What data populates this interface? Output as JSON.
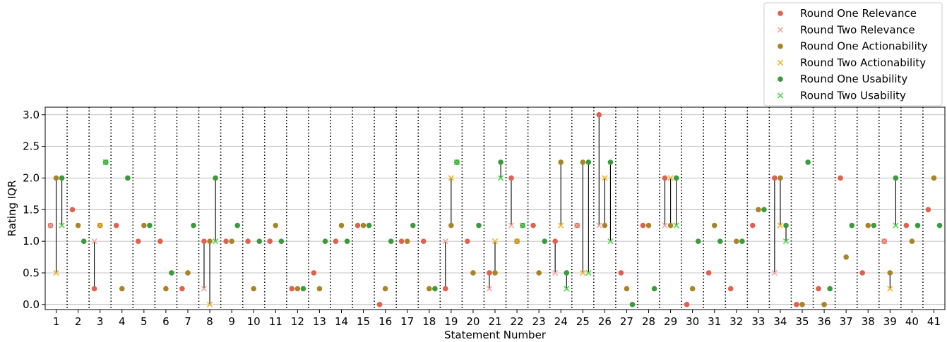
{
  "chart_data": {
    "type": "scatter",
    "title": "",
    "xlabel": "Statement Number",
    "ylabel": "Rating IQR",
    "ylim": [
      -0.08,
      3.12
    ],
    "yticks": [
      0.0,
      0.5,
      1.0,
      1.5,
      2.0,
      2.5,
      3.0
    ],
    "ytick_labels": [
      "0.0",
      "0.5",
      "1.0",
      "1.5",
      "2.0",
      "2.5",
      "3.0"
    ],
    "categories": [
      "1",
      "2",
      "3",
      "4",
      "5",
      "6",
      "7",
      "8",
      "9",
      "10",
      "11",
      "12",
      "13",
      "14",
      "15",
      "16",
      "17",
      "18",
      "19",
      "20",
      "21",
      "22",
      "23",
      "24",
      "25",
      "26",
      "27",
      "28",
      "29",
      "30",
      "31",
      "32",
      "33",
      "34",
      "35",
      "36",
      "37",
      "38",
      "39",
      "40",
      "41"
    ],
    "grid": "horizontal",
    "legend_position": "top-right",
    "series": [
      {
        "name": "Round One Relevance",
        "marker": "circle",
        "color": "#e0614f",
        "offset": -0.26,
        "values": [
          1.25,
          1.5,
          0.25,
          1.25,
          1.0,
          1.0,
          0.25,
          1.0,
          1.0,
          1.0,
          1.0,
          0.25,
          0.5,
          1.0,
          1.25,
          0.0,
          1.0,
          1.0,
          0.25,
          1.0,
          0.5,
          2.0,
          1.25,
          1.0,
          1.25,
          3.0,
          0.5,
          1.25,
          2.0,
          0.0,
          0.5,
          0.25,
          1.25,
          2.0,
          0.0,
          0.25,
          2.0,
          0.5,
          1.0,
          1.25,
          1.5
        ]
      },
      {
        "name": "Round Two Relevance",
        "marker": "x",
        "color": "#f5a9a0",
        "offset": -0.26,
        "values": [
          1.25,
          null,
          1.0,
          null,
          null,
          null,
          null,
          0.25,
          null,
          null,
          null,
          null,
          null,
          null,
          null,
          null,
          null,
          null,
          1.0,
          null,
          0.25,
          1.25,
          null,
          0.5,
          1.25,
          1.25,
          null,
          null,
          1.25,
          null,
          null,
          null,
          null,
          0.5,
          null,
          null,
          null,
          null,
          1.0,
          null,
          null
        ]
      },
      {
        "name": "Round One Actionability",
        "marker": "circle",
        "color": "#a88428",
        "offset": 0.0,
        "values": [
          2.0,
          1.25,
          1.25,
          0.25,
          1.25,
          0.25,
          0.5,
          1.0,
          1.0,
          0.25,
          1.25,
          0.25,
          0.25,
          1.25,
          1.25,
          0.25,
          1.0,
          0.25,
          1.25,
          0.5,
          0.5,
          1.0,
          0.5,
          2.25,
          2.25,
          1.25,
          0.25,
          1.25,
          1.25,
          0.25,
          1.25,
          1.0,
          1.5,
          2.0,
          0.0,
          0.0,
          0.75,
          1.25,
          0.5,
          1.0,
          2.0
        ]
      },
      {
        "name": "Round Two Actionability",
        "marker": "x",
        "color": "#f0b62a",
        "offset": 0.0,
        "values": [
          0.5,
          null,
          1.25,
          null,
          null,
          null,
          null,
          0.0,
          null,
          null,
          null,
          null,
          null,
          null,
          null,
          null,
          null,
          null,
          2.0,
          null,
          1.0,
          1.0,
          null,
          1.25,
          0.5,
          2.0,
          null,
          null,
          2.0,
          null,
          null,
          null,
          null,
          1.25,
          null,
          null,
          null,
          null,
          0.25,
          null,
          null
        ]
      },
      {
        "name": "Round One Usability",
        "marker": "circle",
        "color": "#3a9a3c",
        "offset": 0.26,
        "values": [
          2.0,
          1.0,
          2.25,
          2.0,
          1.25,
          0.5,
          1.25,
          2.0,
          1.25,
          1.0,
          1.0,
          0.25,
          1.0,
          1.0,
          1.25,
          1.0,
          1.25,
          0.25,
          2.25,
          1.25,
          2.25,
          1.25,
          1.0,
          0.5,
          2.25,
          2.25,
          0.0,
          0.25,
          2.0,
          1.0,
          1.0,
          1.0,
          1.5,
          1.25,
          2.25,
          0.25,
          1.25,
          1.25,
          2.0,
          1.25,
          1.25
        ]
      },
      {
        "name": "Round Two Usability",
        "marker": "x",
        "color": "#4fd64b",
        "offset": 0.26,
        "values": [
          1.25,
          null,
          2.25,
          null,
          null,
          null,
          null,
          1.0,
          null,
          null,
          null,
          null,
          null,
          null,
          null,
          null,
          null,
          null,
          2.25,
          null,
          2.0,
          1.25,
          null,
          0.25,
          0.5,
          1.0,
          null,
          null,
          1.25,
          null,
          null,
          null,
          null,
          1.0,
          null,
          null,
          null,
          null,
          1.25,
          null,
          null
        ]
      }
    ]
  }
}
